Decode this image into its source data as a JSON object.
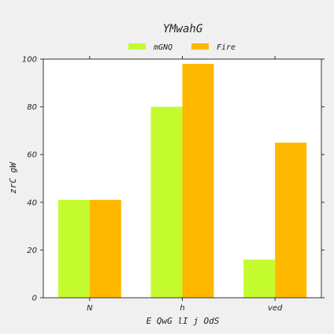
{
  "chart_data": {
    "type": "bar",
    "title": "YMwahG",
    "xlabel": "E QwG lI j OdS",
    "ylabel": "zrC gW",
    "categories": [
      "N",
      "h",
      "ved"
    ],
    "series": [
      {
        "name": "mGNQ",
        "color": "#c4fb2e",
        "values": [
          41,
          80,
          16
        ]
      },
      {
        "name": "Fire",
        "color": "#ffb800",
        "values": [
          41,
          98,
          65
        ]
      }
    ],
    "ylim": [
      0,
      100
    ],
    "yticks": [
      0,
      20,
      40,
      60,
      80,
      100
    ],
    "grid": false,
    "legend_position": "top-center"
  }
}
